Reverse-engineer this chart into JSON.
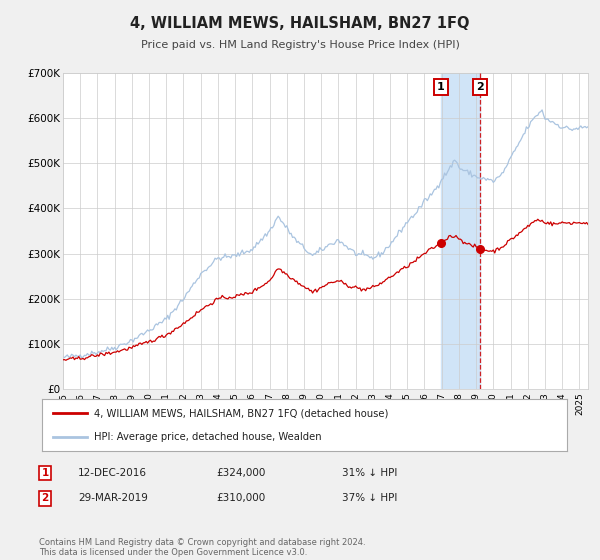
{
  "title": "4, WILLIAM MEWS, HAILSHAM, BN27 1FQ",
  "subtitle": "Price paid vs. HM Land Registry's House Price Index (HPI)",
  "ylim": [
    0,
    700000
  ],
  "xlim_start": 1995.0,
  "xlim_end": 2025.5,
  "yticks": [
    0,
    100000,
    200000,
    300000,
    400000,
    500000,
    600000,
    700000
  ],
  "ytick_labels": [
    "£0",
    "£100K",
    "£200K",
    "£300K",
    "£400K",
    "£500K",
    "£600K",
    "£700K"
  ],
  "background_color": "#f0f0f0",
  "plot_bg_color": "#ffffff",
  "grid_color": "#cccccc",
  "hpi_color": "#aac4e0",
  "price_color": "#cc0000",
  "marker1_date": 2016.96,
  "marker1_price": 324000,
  "marker2_date": 2019.25,
  "marker2_price": 310000,
  "marker1_label": "1",
  "marker2_label": "2",
  "annotation_box_color": "#cc0000",
  "shaded_region_color": "#d0e4f7",
  "legend_label_red": "4, WILLIAM MEWS, HAILSHAM, BN27 1FQ (detached house)",
  "legend_label_blue": "HPI: Average price, detached house, Wealden",
  "footnote": "Contains HM Land Registry data © Crown copyright and database right 2024.\nThis data is licensed under the Open Government Licence v3.0.",
  "table_row1": [
    "1",
    "12-DEC-2016",
    "£324,000",
    "31% ↓ HPI"
  ],
  "table_row2": [
    "2",
    "29-MAR-2019",
    "£310,000",
    "37% ↓ HPI"
  ],
  "hpi_ctrl_x": [
    1995.0,
    1996.0,
    1997.0,
    1998.0,
    1999.0,
    2000.0,
    2001.0,
    2002.0,
    2003.0,
    2004.0,
    2005.0,
    2006.0,
    2007.0,
    2007.5,
    2008.5,
    2009.5,
    2010.5,
    2011.0,
    2011.5,
    2012.0,
    2012.5,
    2013.0,
    2013.5,
    2014.0,
    2014.5,
    2015.0,
    2015.5,
    2016.0,
    2016.5,
    2017.0,
    2017.5,
    2017.8,
    2018.0,
    2018.5,
    2019.0,
    2019.5,
    2020.0,
    2020.5,
    2021.0,
    2021.5,
    2022.0,
    2022.5,
    2022.8,
    2023.0,
    2023.5,
    2024.0,
    2024.5,
    2025.5
  ],
  "hpi_ctrl_y": [
    70000,
    75000,
    82000,
    92000,
    108000,
    130000,
    155000,
    200000,
    255000,
    290000,
    295000,
    310000,
    350000,
    382000,
    330000,
    295000,
    320000,
    330000,
    315000,
    300000,
    295000,
    290000,
    300000,
    320000,
    345000,
    370000,
    390000,
    415000,
    435000,
    465000,
    490000,
    510000,
    490000,
    480000,
    470000,
    465000,
    460000,
    475000,
    510000,
    545000,
    580000,
    605000,
    618000,
    600000,
    590000,
    580000,
    575000,
    580000
  ],
  "price_ctrl_x": [
    1995.0,
    1996.0,
    1997.0,
    1998.0,
    1999.0,
    2000.0,
    2001.0,
    2002.0,
    2003.0,
    2004.0,
    2005.0,
    2006.0,
    2007.0,
    2007.5,
    2008.5,
    2009.5,
    2010.0,
    2010.5,
    2011.0,
    2011.5,
    2012.0,
    2012.5,
    2013.0,
    2013.5,
    2014.0,
    2014.5,
    2015.0,
    2015.5,
    2016.0,
    2016.96,
    2017.5,
    2018.0,
    2018.5,
    2019.0,
    2019.25,
    2019.5,
    2020.0,
    2020.5,
    2021.0,
    2021.5,
    2022.0,
    2022.5,
    2023.0,
    2023.5,
    2024.0,
    2024.5,
    2025.5
  ],
  "price_ctrl_y": [
    65000,
    68000,
    75000,
    82000,
    92000,
    105000,
    120000,
    145000,
    175000,
    200000,
    205000,
    215000,
    240000,
    268000,
    240000,
    215000,
    225000,
    235000,
    240000,
    230000,
    225000,
    220000,
    225000,
    235000,
    248000,
    260000,
    272000,
    285000,
    300000,
    324000,
    340000,
    335000,
    320000,
    315000,
    310000,
    308000,
    305000,
    315000,
    330000,
    345000,
    360000,
    375000,
    370000,
    365000,
    368000,
    368000,
    368000
  ]
}
